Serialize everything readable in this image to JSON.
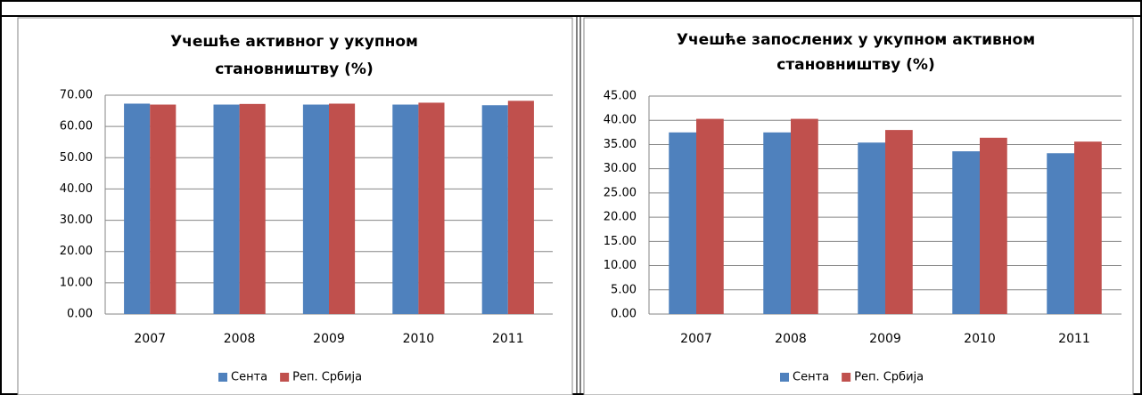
{
  "chart_data": [
    {
      "type": "bar",
      "title": [
        "Учешће активног у укупном",
        "становништву (%)"
      ],
      "categories": [
        "2007",
        "2008",
        "2009",
        "2010",
        "2011"
      ],
      "series": [
        {
          "name": "Сента",
          "color": "#4f81bd",
          "values": [
            67.3,
            67.0,
            67.0,
            67.0,
            66.8
          ]
        },
        {
          "name": "Реп. Србија",
          "color": "#c0504d",
          "values": [
            67.0,
            67.2,
            67.3,
            67.6,
            68.2
          ]
        }
      ],
      "ylim": [
        0,
        70
      ],
      "yticks": [
        {
          "value": 0,
          "label": "0.00"
        },
        {
          "value": 10,
          "label": "10.00"
        },
        {
          "value": 20,
          "label": "20.00"
        },
        {
          "value": 30,
          "label": "30.00"
        },
        {
          "value": 40,
          "label": "40.00"
        },
        {
          "value": 50,
          "label": "50.00"
        },
        {
          "value": 60,
          "label": "60.00"
        },
        {
          "value": 70,
          "label": "70.00"
        }
      ],
      "grid": true,
      "legend": "bottom"
    },
    {
      "type": "bar",
      "title": [
        "Учешће запослених у укупном активном",
        "становништву (%)"
      ],
      "categories": [
        "2007",
        "2008",
        "2009",
        "2010",
        "2011"
      ],
      "series": [
        {
          "name": "Сента",
          "color": "#4f81bd",
          "values": [
            37.5,
            37.5,
            35.4,
            33.6,
            33.2
          ]
        },
        {
          "name": "Реп. Србија",
          "color": "#c0504d",
          "values": [
            40.3,
            40.3,
            38.0,
            36.4,
            35.6
          ]
        }
      ],
      "ylim": [
        0,
        45
      ],
      "yticks": [
        {
          "value": 0,
          "label": "0.00"
        },
        {
          "value": 5,
          "label": "5.00"
        },
        {
          "value": 10,
          "label": "10.00"
        },
        {
          "value": 15,
          "label": "15.00"
        },
        {
          "value": 20,
          "label": "20.00"
        },
        {
          "value": 25,
          "label": "25.00"
        },
        {
          "value": 30,
          "label": "30.00"
        },
        {
          "value": 35,
          "label": "35.00"
        },
        {
          "value": 40,
          "label": "40.00"
        },
        {
          "value": 45,
          "label": "45.00"
        }
      ],
      "grid": true,
      "legend": "bottom"
    }
  ]
}
